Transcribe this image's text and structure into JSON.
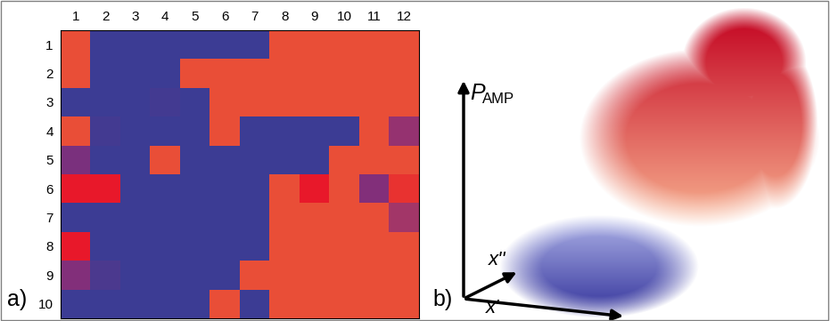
{
  "chart_data": {
    "type": "heatmap",
    "cells": [
      [
        0.9,
        0,
        0,
        0,
        0,
        0,
        0,
        0.9,
        0.9,
        0.9,
        0.9,
        0.9
      ],
      [
        0.9,
        0,
        0,
        0,
        0.9,
        0.9,
        0.9,
        0.9,
        0.9,
        0.9,
        0.9,
        0.9
      ],
      [
        0,
        0,
        0,
        0.05,
        0,
        0.9,
        0.9,
        0.9,
        0.9,
        0.9,
        0.9,
        0.9
      ],
      [
        0.9,
        0.05,
        0,
        0,
        0,
        0.9,
        0,
        0,
        0,
        0,
        0.9,
        0.55
      ],
      [
        0.4,
        0,
        0,
        0.9,
        0,
        0,
        0,
        0,
        0,
        0.9,
        0.9,
        0.9
      ],
      [
        1.0,
        1.0,
        0,
        0,
        0,
        0,
        0,
        0.9,
        1.0,
        0.9,
        0.45,
        0.95
      ],
      [
        0,
        0,
        0,
        0,
        0,
        0,
        0,
        0.9,
        0.9,
        0.9,
        0.9,
        0.6
      ],
      [
        1.0,
        0,
        0,
        0,
        0,
        0,
        0,
        0.9,
        0.9,
        0.9,
        0.9,
        0.9
      ],
      [
        0.45,
        0.1,
        0,
        0,
        0,
        0,
        0.9,
        0.9,
        0.9,
        0.9,
        0.9,
        0.9
      ],
      [
        0,
        0,
        0,
        0,
        0,
        0.9,
        0,
        0.9,
        0.9,
        0.9,
        0.9,
        0.9
      ]
    ],
    "color_range": [
      0,
      1
    ],
    "xlim": [
      0.5,
      12.5
    ],
    "ylim": [
      10.5,
      0.5
    ],
    "xticks": [
      1,
      2,
      3,
      4,
      5,
      6,
      7,
      8,
      9,
      10,
      11,
      12
    ],
    "yticks": [
      1,
      2,
      3,
      4,
      5,
      6,
      7,
      8,
      9,
      10
    ]
  },
  "panel_labels": [
    "a)",
    "b)"
  ],
  "diagram": {
    "axes": {
      "vertical": {
        "text": "P",
        "subscript": "AMP"
      },
      "horizontal": "x'",
      "depth": "x''"
    }
  }
}
